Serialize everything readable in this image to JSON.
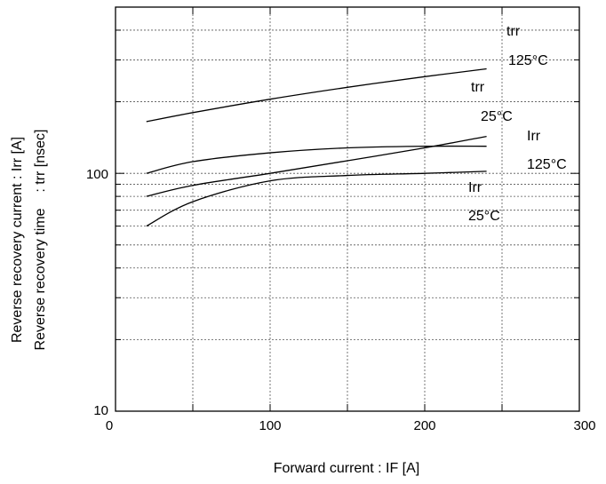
{
  "chart_data": {
    "type": "line",
    "xlabel": "Forward current : IF [A]",
    "ylabel_line1": "Reverse recovery current : Irr [A]",
    "ylabel_line2": "Reverse recovery time    : trr [nsec]",
    "xlim": [
      0,
      300
    ],
    "ylim": [
      10,
      500
    ],
    "yscale": "log",
    "grid": true,
    "x_ticks": [
      "0",
      "100",
      "200",
      "300"
    ],
    "y_ticks": [
      "10",
      "100"
    ],
    "annotations": {
      "trr125_a": "trr",
      "trr125_b": "125°C",
      "trr25_a": "trr",
      "trr25_b": "25°C",
      "irr125_a": "Irr",
      "irr125_b": "125°C",
      "irr25_a": "Irr",
      "irr25_b": "25°C"
    },
    "series": [
      {
        "key": "trr125",
        "x": [
          20,
          50,
          100,
          150,
          200,
          240
        ],
        "y": [
          165,
          180,
          205,
          230,
          255,
          275
        ]
      },
      {
        "key": "trr25",
        "x": [
          20,
          50,
          100,
          150,
          200,
          240
        ],
        "y": [
          100,
          112,
          122,
          128,
          130,
          130
        ]
      },
      {
        "key": "irr125",
        "x": [
          20,
          50,
          100,
          150,
          200,
          240
        ],
        "y": [
          80,
          89,
          100,
          113,
          128,
          143
        ]
      },
      {
        "key": "irr25",
        "x": [
          20,
          50,
          100,
          150,
          200,
          240
        ],
        "y": [
          60,
          76,
          93,
          98,
          100,
          102
        ]
      }
    ]
  }
}
